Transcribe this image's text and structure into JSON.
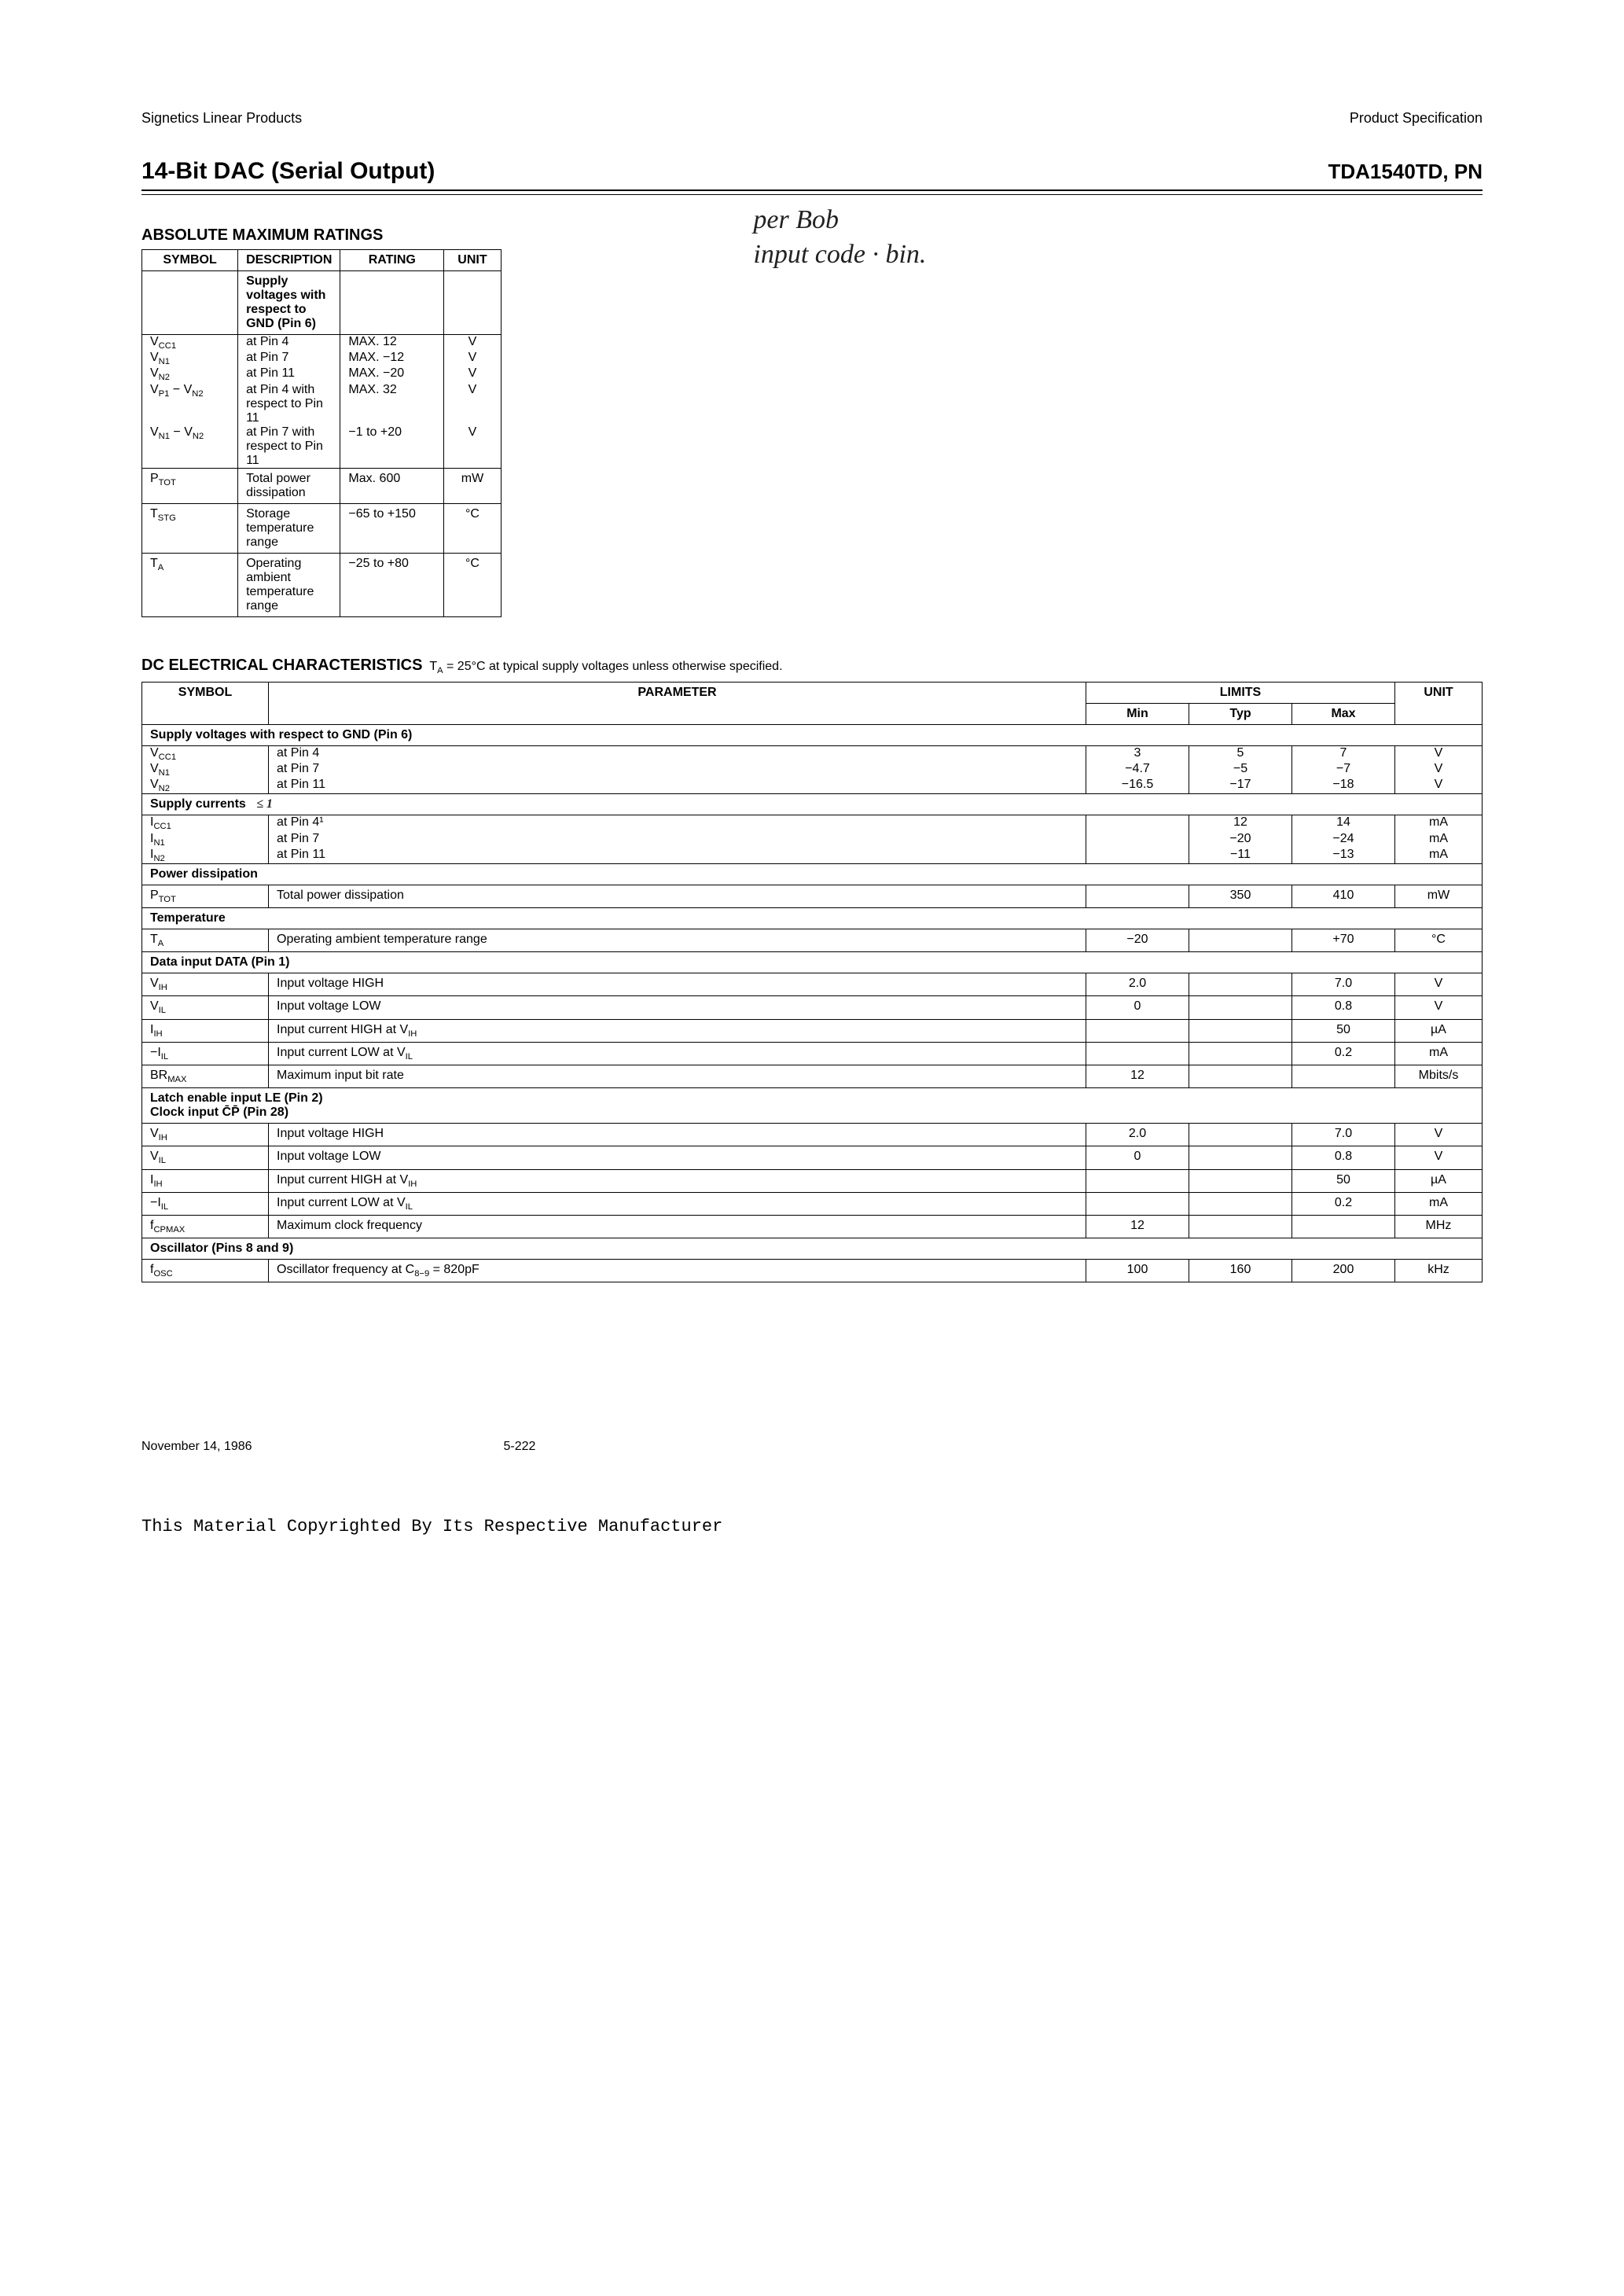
{
  "header": {
    "left": "Signetics Linear Products",
    "right": "Product Specification"
  },
  "title": {
    "left": "14-Bit DAC (Serial Output)",
    "right": "TDA1540TD, PN"
  },
  "handwritten": {
    "line1": "per Bob",
    "line2": "input code · bin."
  },
  "amr": {
    "heading": "ABSOLUTE MAXIMUM RATINGS",
    "cols": {
      "symbol": "SYMBOL",
      "description": "DESCRIPTION",
      "rating": "RATING",
      "unit": "UNIT"
    },
    "supply_header": "Supply voltages with respect to GND (Pin 6)",
    "rows_supply": [
      {
        "sym": "V_CC1",
        "desc": "at Pin 4",
        "rating": "MAX.  12",
        "unit": "V"
      },
      {
        "sym": "V_N1",
        "desc": "at Pin 7",
        "rating": "MAX.  −12",
        "unit": "V"
      },
      {
        "sym": "V_N2",
        "desc": "at Pin 11",
        "rating": "MAX.  −20",
        "unit": "V"
      },
      {
        "sym": "V_P1 − V_N2",
        "desc": "at Pin 4 with respect to Pin 11",
        "rating": "MAX. 32",
        "unit": "V"
      },
      {
        "sym": "V_N1 − V_N2",
        "desc": "at Pin 7 with respect to Pin 11",
        "rating": "−1 to +20",
        "unit": "V"
      }
    ],
    "rows_rest": [
      {
        "sym": "P_TOT",
        "desc": "Total power dissipation",
        "rating": "Max.  600",
        "unit": "mW"
      },
      {
        "sym": "T_STG",
        "desc": "Storage temperature range",
        "rating": "−65 to +150",
        "unit": "°C"
      },
      {
        "sym": "T_A",
        "desc": "Operating ambient temperature range",
        "rating": "−25 to +80",
        "unit": "°C"
      }
    ]
  },
  "dc": {
    "heading": "DC ELECTRICAL CHARACTERISTICS",
    "sub": "T_A = 25°C at typical supply voltages unless otherwise specified.",
    "cols": {
      "symbol": "SYMBOL",
      "parameter": "PARAMETER",
      "limits": "LIMITS",
      "min": "Min",
      "typ": "Typ",
      "max": "Max",
      "unit": "UNIT"
    },
    "sections": [
      {
        "title": "Supply voltages with respect to GND (Pin 6)",
        "rows": [
          {
            "sym": "V_CC1",
            "param": "at Pin 4",
            "min": "3",
            "typ": "5",
            "max": "7",
            "unit": "V"
          },
          {
            "sym": "V_N1",
            "param": "at Pin 7",
            "min": "−4.7",
            "typ": "−5",
            "max": "−7",
            "unit": "V"
          },
          {
            "sym": "V_N2",
            "param": "at Pin 11",
            "min": "−16.5",
            "typ": "−17",
            "max": "−18",
            "unit": "V"
          }
        ]
      },
      {
        "title": "Supply currents",
        "rows": [
          {
            "sym": "I_CC1",
            "param": "at Pin 4¹",
            "min": "",
            "typ": "12",
            "max": "14",
            "unit": "mA"
          },
          {
            "sym": "I_N1",
            "param": "at Pin 7",
            "min": "",
            "typ": "−20",
            "max": "−24",
            "unit": "mA"
          },
          {
            "sym": "I_N2",
            "param": "at Pin 11",
            "min": "",
            "typ": "−11",
            "max": "−13",
            "unit": "mA"
          }
        ],
        "handmark": "≤ 1"
      },
      {
        "title": "Power dissipation",
        "rows": [
          {
            "sym": "P_TOT",
            "param": "Total power dissipation",
            "min": "",
            "typ": "350",
            "max": "410",
            "unit": "mW"
          }
        ]
      },
      {
        "title": "Temperature",
        "rows": [
          {
            "sym": "T_A",
            "param": "Operating ambient temperature range",
            "min": "−20",
            "typ": "",
            "max": "+70",
            "unit": "°C"
          }
        ]
      },
      {
        "title": "Data input DATA (Pin 1)",
        "rows": [
          {
            "sym": "V_IH",
            "param": "Input voltage HIGH",
            "min": "2.0",
            "typ": "",
            "max": "7.0",
            "unit": "V"
          },
          {
            "sym": "V_IL",
            "param": "Input voltage LOW",
            "min": "0",
            "typ": "",
            "max": "0.8",
            "unit": "V"
          },
          {
            "sym": "I_IH",
            "param": "Input current HIGH at V_IH",
            "min": "",
            "typ": "",
            "max": "50",
            "unit": "µA"
          },
          {
            "sym": "−I_IL",
            "param": "Input current LOW at V_IL",
            "min": "",
            "typ": "",
            "max": "0.2",
            "unit": "mA"
          },
          {
            "sym": "BR_MAX",
            "param": "Maximum input bit rate",
            "min": "12",
            "typ": "",
            "max": "",
            "unit": "Mbits/s"
          }
        ]
      },
      {
        "title": "Latch enable input LE (Pin 2)\nClock input C̄P̄ (Pin 28)",
        "rows": [
          {
            "sym": "V_IH",
            "param": "Input voltage HIGH",
            "min": "2.0",
            "typ": "",
            "max": "7.0",
            "unit": "V"
          },
          {
            "sym": "V_IL",
            "param": "Input voltage LOW",
            "min": "0",
            "typ": "",
            "max": "0.8",
            "unit": "V"
          },
          {
            "sym": "I_IH",
            "param": "Input current HIGH at V_IH",
            "min": "",
            "typ": "",
            "max": "50",
            "unit": "µA"
          },
          {
            "sym": "−I_IL",
            "param": "Input current LOW at V_IL",
            "min": "",
            "typ": "",
            "max": "0.2",
            "unit": "mA"
          },
          {
            "sym": "f_CPMAX",
            "param": "Maximum clock frequency",
            "min": "12",
            "typ": "",
            "max": "",
            "unit": "MHz"
          }
        ]
      },
      {
        "title": "Oscillator (Pins 8 and 9)",
        "rows": [
          {
            "sym": "f_OSC",
            "param": "Oscillator frequency at C_8−9 = 820pF",
            "min": "100",
            "typ": "160",
            "max": "200",
            "unit": "kHz"
          }
        ]
      }
    ]
  },
  "footer": {
    "date": "November 14, 1986",
    "page": "5-222",
    "copyright": "This Material Copyrighted By Its Respective Manufacturer"
  }
}
